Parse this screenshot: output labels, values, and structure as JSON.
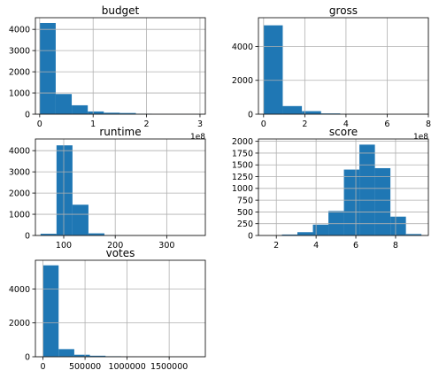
{
  "chart_data": [
    {
      "type": "bar",
      "title": "budget",
      "xlim": [
        -8000000,
        310000000
      ],
      "ylim": [
        0,
        4550
      ],
      "xticks": [
        0,
        100000000,
        200000000,
        300000000
      ],
      "xtick_labels": [
        "0",
        "1",
        "2",
        "3"
      ],
      "yticks": [
        0,
        1000,
        2000,
        3000,
        4000
      ],
      "ytick_labels": [
        "0",
        "1000",
        "2000",
        "3000",
        "4000"
      ],
      "offset_label": "1e8",
      "bin_edges": [
        0,
        30000000,
        60000000,
        90000000,
        120000000,
        150000000,
        180000000,
        210000000,
        240000000,
        270000000,
        300000000
      ],
      "values": [
        4300,
        950,
        420,
        130,
        70,
        55,
        22,
        5,
        2,
        1
      ],
      "grid": true
    },
    {
      "type": "bar",
      "title": "gross",
      "xlim": [
        -25000000,
        800000000
      ],
      "ylim": [
        0,
        5700
      ],
      "xticks": [
        0,
        200000000,
        400000000,
        600000000,
        800000000
      ],
      "xtick_labels": [
        "0",
        "2",
        "4",
        "6",
        "8"
      ],
      "yticks": [
        0,
        2000,
        4000
      ],
      "ytick_labels": [
        "0",
        "2000",
        "4000"
      ],
      "offset_label": "1e8",
      "bin_edges": [
        0,
        93000000,
        186000000,
        279000000,
        372000000,
        465000000,
        558000000,
        651000000,
        744000000,
        837000000,
        930000000
      ],
      "values": [
        5250,
        480,
        180,
        45,
        20,
        6,
        2,
        1,
        0,
        0
      ],
      "grid": true
    },
    {
      "type": "bar",
      "title": "runtime",
      "xlim": [
        45,
        375
      ],
      "ylim": [
        0,
        4550
      ],
      "xticks": [
        100,
        200,
        300
      ],
      "xtick_labels": [
        "100",
        "200",
        "300"
      ],
      "yticks": [
        0,
        1000,
        2000,
        3000,
        4000
      ],
      "ytick_labels": [
        "0",
        "1000",
        "2000",
        "3000",
        "4000"
      ],
      "bin_edges": [
        55,
        86,
        117,
        148,
        179,
        210,
        241,
        272,
        303,
        334,
        365
      ],
      "values": [
        80,
        4250,
        1450,
        100,
        20,
        5,
        2,
        1,
        0,
        1
      ],
      "grid": true
    },
    {
      "type": "bar",
      "title": "score",
      "xlim": [
        1.1,
        9.65
      ],
      "ylim": [
        0,
        2050
      ],
      "xticks": [
        2,
        4,
        6,
        8
      ],
      "xtick_labels": [
        "2",
        "4",
        "6",
        "8"
      ],
      "yticks": [
        0,
        250,
        500,
        750,
        1000,
        1250,
        1500,
        1750,
        2000
      ],
      "ytick_labels": [
        "0",
        "250",
        "500",
        "750",
        "1000",
        "1250",
        "1500",
        "1750",
        "2000"
      ],
      "bin_edges": [
        1.5,
        2.28,
        3.06,
        3.84,
        4.62,
        5.4,
        6.18,
        6.96,
        7.74,
        8.52,
        9.3
      ],
      "values": [
        3,
        20,
        70,
        230,
        520,
        1400,
        1930,
        1430,
        400,
        30
      ],
      "grid": true
    },
    {
      "type": "bar",
      "title": "votes",
      "xlim": [
        -90000,
        1930000
      ],
      "ylim": [
        0,
        5700
      ],
      "xticks": [
        0,
        500000,
        1000000,
        1500000
      ],
      "xtick_labels": [
        "0",
        "500000",
        "1000000",
        "1500000"
      ],
      "yticks": [
        0,
        2000,
        4000
      ],
      "ytick_labels": [
        "0",
        "2000",
        "4000"
      ],
      "bin_edges": [
        0,
        186000,
        372000,
        558000,
        744000,
        930000,
        1116000,
        1302000,
        1488000,
        1674000,
        1860000
      ],
      "values": [
        5400,
        450,
        120,
        60,
        30,
        15,
        6,
        3,
        1,
        1
      ],
      "grid": true
    }
  ],
  "style": {
    "bar_color": "#1f77b4",
    "grid_color": "#b0b0b0",
    "axis_color": "#000000"
  }
}
